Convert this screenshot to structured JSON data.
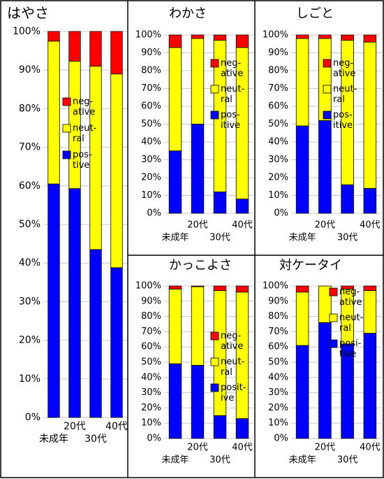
{
  "chart_data": [
    {
      "type": "bar",
      "stacked": true,
      "title": "はやさ",
      "categories": [
        "未成年",
        "20代",
        "30代",
        "40代"
      ],
      "series": [
        {
          "name": "pos-\ntive",
          "color": "#0000ff",
          "values": [
            60.5,
            59.3,
            43.5,
            38.8
          ]
        },
        {
          "name": "neut-\nral",
          "color": "#ffff00",
          "values": [
            37,
            33,
            47.5,
            50.2
          ]
        },
        {
          "name": "neg-\native",
          "color": "#ff0000",
          "values": [
            2.5,
            7.7,
            9,
            11
          ]
        }
      ],
      "ylim": [
        0,
        100
      ],
      "grid": true,
      "yticks": [
        {
          "value": 0,
          "label": "0%"
        },
        {
          "value": 10,
          "label": "10%"
        },
        {
          "value": 20,
          "label": "20%"
        },
        {
          "value": 30,
          "label": "30%"
        },
        {
          "value": 40,
          "label": "40%"
        },
        {
          "value": 50,
          "label": "50%"
        },
        {
          "value": 60,
          "label": "60%"
        },
        {
          "value": 70,
          "label": "70%"
        },
        {
          "value": 80,
          "label": "80%"
        },
        {
          "value": 90,
          "label": "90%"
        },
        {
          "value": 100,
          "label": "100%"
        }
      ]
    },
    {
      "type": "bar",
      "stacked": true,
      "title": "わかさ",
      "categories": [
        "未成年",
        "20代",
        "30代",
        "40代"
      ],
      "series": [
        {
          "name": "pos-\nitive",
          "color": "#0000ff",
          "values": [
            35,
            50,
            12,
            8
          ]
        },
        {
          "name": "neut-\nral",
          "color": "#ffff00",
          "values": [
            58,
            48,
            85,
            85
          ]
        },
        {
          "name": "neg-\native",
          "color": "#ff0000",
          "values": [
            7,
            2,
            3,
            7
          ]
        }
      ],
      "ylim": [
        0,
        100
      ],
      "grid": true,
      "yticks": [
        {
          "value": 0,
          "label": "0%"
        },
        {
          "value": 10,
          "label": "10%"
        },
        {
          "value": 20,
          "label": "20%"
        },
        {
          "value": 30,
          "label": "30%"
        },
        {
          "value": 40,
          "label": "40%"
        },
        {
          "value": 50,
          "label": "50%"
        },
        {
          "value": 60,
          "label": "60%"
        },
        {
          "value": 70,
          "label": "70%"
        },
        {
          "value": 80,
          "label": "80%"
        },
        {
          "value": 90,
          "label": "90%"
        },
        {
          "value": 100,
          "label": "100%"
        }
      ]
    },
    {
      "type": "bar",
      "stacked": true,
      "title": "しごと",
      "categories": [
        "未成年",
        "20代",
        "30代",
        "40代"
      ],
      "series": [
        {
          "name": "pos-\nitive",
          "color": "#0000ff",
          "values": [
            49,
            52,
            16,
            14
          ]
        },
        {
          "name": "neut-\nral",
          "color": "#ffff00",
          "values": [
            49,
            46,
            81,
            82
          ]
        },
        {
          "name": "neg-\native",
          "color": "#ff0000",
          "values": [
            2,
            2,
            3,
            4
          ]
        }
      ],
      "ylim": [
        0,
        100
      ],
      "grid": true,
      "yticks": [
        {
          "value": 0,
          "label": "0%"
        },
        {
          "value": 10,
          "label": "10%"
        },
        {
          "value": 20,
          "label": "20%"
        },
        {
          "value": 30,
          "label": "30%"
        },
        {
          "value": 40,
          "label": "40%"
        },
        {
          "value": 50,
          "label": "50%"
        },
        {
          "value": 60,
          "label": "60%"
        },
        {
          "value": 70,
          "label": "70%"
        },
        {
          "value": 80,
          "label": "80%"
        },
        {
          "value": 90,
          "label": "90%"
        },
        {
          "value": 100,
          "label": "100%"
        }
      ]
    },
    {
      "type": "bar",
      "stacked": true,
      "title": "かっこよさ",
      "categories": [
        "未成年",
        "20代",
        "30代",
        "40代"
      ],
      "series": [
        {
          "name": "posit-\nive",
          "color": "#0000ff",
          "values": [
            49,
            48,
            15,
            13
          ]
        },
        {
          "name": "neut-\nral",
          "color": "#ffff00",
          "values": [
            49,
            51.5,
            82,
            83
          ]
        },
        {
          "name": "neg-\native",
          "color": "#ff0000",
          "values": [
            2,
            0.5,
            3,
            4
          ]
        }
      ],
      "ylim": [
        0,
        100
      ],
      "grid": true,
      "yticks": [
        {
          "value": 0,
          "label": "0%"
        },
        {
          "value": 10,
          "label": "10%"
        },
        {
          "value": 20,
          "label": "20%"
        },
        {
          "value": 30,
          "label": "30%"
        },
        {
          "value": 40,
          "label": "40%"
        },
        {
          "value": 50,
          "label": "50%"
        },
        {
          "value": 60,
          "label": "60%"
        },
        {
          "value": 70,
          "label": "70%"
        },
        {
          "value": 80,
          "label": "80%"
        },
        {
          "value": 90,
          "label": "90%"
        },
        {
          "value": 100,
          "label": "100%"
        }
      ]
    },
    {
      "type": "bar",
      "stacked": true,
      "title": "対ケータイ",
      "categories": [
        "未成年",
        "20代",
        "30代",
        "40代"
      ],
      "series": [
        {
          "name": "posi-\ntive",
          "color": "#0000ff",
          "values": [
            61,
            76,
            62,
            69
          ]
        },
        {
          "name": "neut-\nral",
          "color": "#ffff00",
          "values": [
            35,
            24,
            36,
            28
          ]
        },
        {
          "name": "neg-\native",
          "color": "#ff0000",
          "values": [
            4,
            0,
            2,
            3
          ]
        }
      ],
      "ylim": [
        0,
        100
      ],
      "grid": true,
      "yticks": [
        {
          "value": 0,
          "label": "0%"
        },
        {
          "value": 10,
          "label": "10%"
        },
        {
          "value": 20,
          "label": "20%"
        },
        {
          "value": 30,
          "label": "30%"
        },
        {
          "value": 40,
          "label": "40%"
        },
        {
          "value": 50,
          "label": "50%"
        },
        {
          "value": 60,
          "label": "60%"
        },
        {
          "value": 70,
          "label": "70%"
        },
        {
          "value": 80,
          "label": "80%"
        },
        {
          "value": 90,
          "label": "90%"
        },
        {
          "value": 100,
          "label": "100%"
        }
      ]
    }
  ]
}
